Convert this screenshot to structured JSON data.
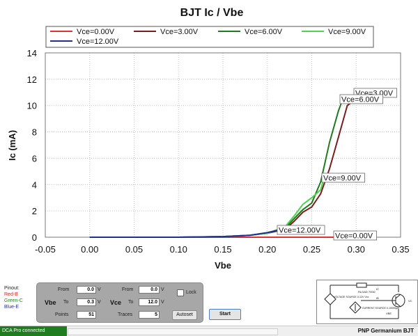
{
  "chart_data": {
    "type": "line",
    "title": "BJT Ic / Vbe",
    "xlabel": "Vbe",
    "ylabel": "Ic (mA)",
    "xlim": [
      -0.05,
      0.35
    ],
    "ylim": [
      0,
      14
    ],
    "xticks": [
      "-0.05",
      "0.00",
      "0.05",
      "0.10",
      "0.15",
      "0.20",
      "0.25",
      "0.30",
      "0.35"
    ],
    "yticks": [
      "0",
      "2",
      "4",
      "6",
      "8",
      "10",
      "12",
      "14"
    ],
    "grid": true,
    "legend_position": "top",
    "series": [
      {
        "name": "Vce=0.00V",
        "color": "#e03030",
        "label": "Vce=0.00V",
        "x": [
          0.0,
          0.05,
          0.1,
          0.15,
          0.2,
          0.25,
          0.28,
          0.3
        ],
        "y": [
          0,
          0,
          0,
          0,
          0,
          0,
          0,
          0
        ]
      },
      {
        "name": "Vce=3.00V",
        "color": "#7a1c1c",
        "label": "Vce=3.00V",
        "x": [
          0.0,
          0.05,
          0.1,
          0.15,
          0.18,
          0.2,
          0.22,
          0.23,
          0.24,
          0.25,
          0.26,
          0.27,
          0.28,
          0.29,
          0.3
        ],
        "y": [
          0.0,
          0.0,
          0.0,
          0.05,
          0.15,
          0.3,
          0.6,
          1.2,
          1.9,
          2.3,
          3.3,
          5.2,
          7.6,
          10.0,
          10.5
        ]
      },
      {
        "name": "Vce=6.00V",
        "color": "#1e7a1e",
        "label": "Vce=6.00V",
        "x": [
          0.0,
          0.05,
          0.1,
          0.15,
          0.18,
          0.2,
          0.22,
          0.23,
          0.24,
          0.25,
          0.26,
          0.27,
          0.28,
          0.285
        ],
        "y": [
          0.0,
          0.0,
          0.0,
          0.05,
          0.15,
          0.3,
          0.7,
          1.4,
          2.1,
          2.6,
          4.2,
          7.2,
          9.6,
          10.5
        ]
      },
      {
        "name": "Vce=9.00V",
        "color": "#4cd24c",
        "label": "Vce=9.00V",
        "x": [
          0.0,
          0.05,
          0.1,
          0.15,
          0.18,
          0.2,
          0.22,
          0.23,
          0.24,
          0.25,
          0.26,
          0.263
        ],
        "y": [
          0.0,
          0.0,
          0.0,
          0.05,
          0.15,
          0.3,
          0.8,
          1.6,
          2.5,
          3.0,
          3.6,
          4.3
        ]
      },
      {
        "name": "Vce=12.00V",
        "color": "#1c2e9a",
        "label": "Vce=12.00V",
        "x": [
          0.0,
          0.05,
          0.1,
          0.15,
          0.18,
          0.2,
          0.21,
          0.22
        ],
        "y": [
          0.0,
          0.0,
          0.0,
          0.05,
          0.15,
          0.35,
          0.5,
          0.6
        ]
      }
    ]
  },
  "controls": {
    "from_label": "From",
    "to_label": "To",
    "points_label": "Points",
    "traces_label": "Traces",
    "unit_v": "V",
    "vbe_label": "Vbe",
    "vce_label": "Vce",
    "vbe_from": "0.0",
    "vbe_to": "0.3",
    "points": "51",
    "vce_from": "0.0",
    "vce_to": "12.0",
    "traces": "5",
    "lock_label": "Lock",
    "autoset_label": "Autoset",
    "start_label": "Start"
  },
  "pinout": {
    "title": "Pinout:",
    "red": "Red-B",
    "green": "Green-C",
    "blue": "Blue-E",
    "red_color": "#d42020",
    "green_color": "#1e8a1e",
    "blue_color": "#1c2eaa"
  },
  "schematic": {
    "voltage_source": "VOLTAGE SOURCE 0-12V Vcc",
    "current_source": "CURRENT SOURCE 0-10000µA",
    "rload": "RLOAD 700Ω",
    "ic": "IC",
    "ib": "IB",
    "vbe": "VBE",
    "vc": "VC"
  },
  "status": {
    "connection": "DCA Pro connected",
    "device": "PNP Germanium BJT"
  }
}
